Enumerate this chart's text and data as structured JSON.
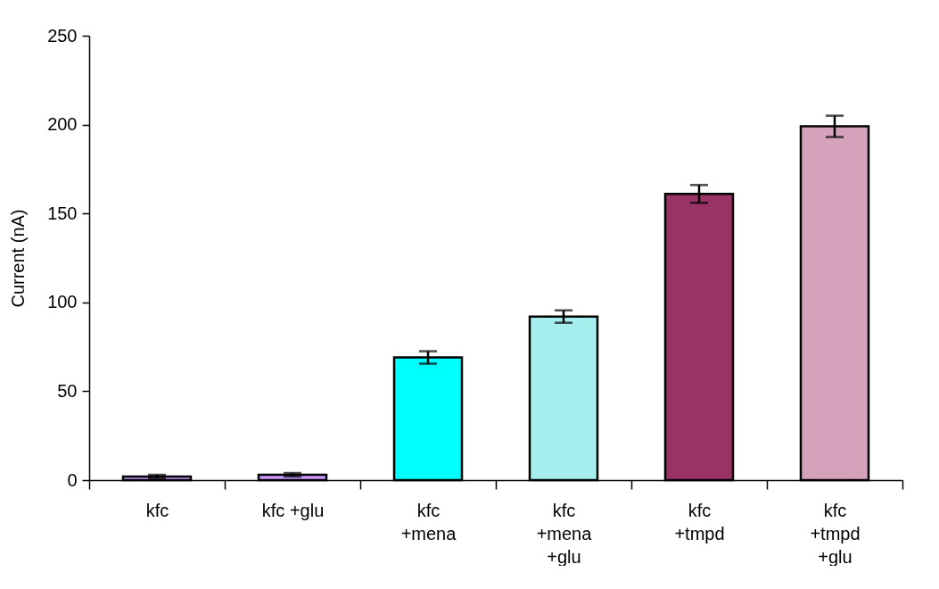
{
  "chart_data": {
    "type": "bar",
    "ylabel": "Current (nA)",
    "categories": [
      "kfc",
      "kfc    +glu",
      "kfc\n+mena",
      "kfc\n+mena\n+glu",
      "kfc\n+tmpd",
      "kfc\n+tmpd\n+glu"
    ],
    "values": [
      2,
      3,
      69,
      92,
      161,
      199
    ],
    "errors": [
      1,
      1,
      3.5,
      3.5,
      5,
      6
    ],
    "colors": [
      "#cc99ff",
      "#cc99ff",
      "#00ffff",
      "#a6eeee",
      "#993366",
      "#d4a3bb"
    ],
    "ylim": [
      0,
      250
    ],
    "yticks": [
      0,
      50,
      100,
      150,
      200,
      250
    ],
    "grid": false,
    "legend": false
  }
}
